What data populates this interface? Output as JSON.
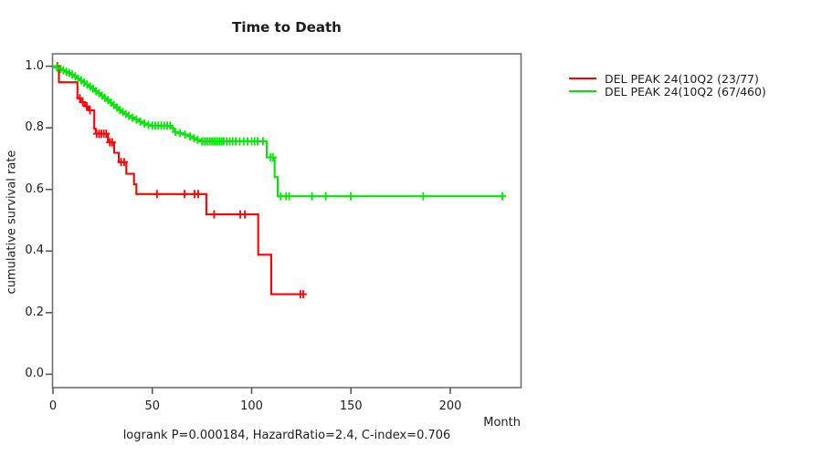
{
  "title": "Time to Death",
  "caption": "logrank P=0.000184, HazardRatio=2.4, C-index=0.706",
  "y_axis_title": "cumulative survival rate",
  "x_axis_unit": "Month",
  "colors": {
    "series_red": "#ff0000",
    "series_green": "#00e600",
    "frame": "#6f6f6f",
    "text": "#1c1c1c"
  },
  "legend": [
    {
      "label": "DEL PEAK 24(10Q2 (23/77)",
      "color": "#ff0000"
    },
    {
      "label": "DEL PEAK 24(10Q2 (67/460)",
      "color": "#00e600"
    }
  ],
  "chart_data": {
    "type": "line",
    "subtype": "kaplan-meier-step",
    "title": "Time to Death",
    "xlabel": "Month",
    "ylabel": "cumulative survival rate",
    "xlim": [
      0,
      235
    ],
    "ylim": [
      0,
      1.0
    ],
    "grid": false,
    "legend_position": "right-outside",
    "x_ticks": [
      {
        "v": 0,
        "label": "0"
      },
      {
        "v": 50,
        "label": "50"
      },
      {
        "v": 100,
        "label": "100"
      },
      {
        "v": 150,
        "label": "150"
      },
      {
        "v": 200,
        "label": "200"
      }
    ],
    "y_ticks": [
      {
        "v": 0.0,
        "label": "0.0"
      },
      {
        "v": 0.2,
        "label": "0.2"
      },
      {
        "v": 0.4,
        "label": "0.4"
      },
      {
        "v": 0.6,
        "label": "0.6"
      },
      {
        "v": 0.8,
        "label": "0.8"
      },
      {
        "v": 1.0,
        "label": "1.0"
      }
    ],
    "series": [
      {
        "name": "DEL PEAK 24(10Q2 (23/77)",
        "events_over_n": "23/77",
        "color": "#ff0000",
        "start": [
          0,
          1.0
        ],
        "steps": [
          [
            3,
            0.948
          ],
          [
            12.3,
            0.896
          ],
          [
            14,
            0.883
          ],
          [
            16,
            0.87
          ],
          [
            17.8,
            0.857
          ],
          [
            20.8,
            0.797
          ],
          [
            21.5,
            0.781
          ],
          [
            27.7,
            0.753
          ],
          [
            30.8,
            0.719
          ],
          [
            33.1,
            0.689
          ],
          [
            36.9,
            0.651
          ],
          [
            40.8,
            0.617
          ],
          [
            42,
            0.585
          ],
          [
            77.2,
            0.519
          ],
          [
            103.3,
            0.388
          ],
          [
            109.9,
            0.26
          ]
        ],
        "end_time": 126.4,
        "censor_marks": [
          [
            2.2,
            1.0
          ],
          [
            13.5,
            0.896
          ],
          [
            15,
            0.883
          ],
          [
            17,
            0.87
          ],
          [
            18.6,
            0.857
          ],
          [
            22,
            0.781
          ],
          [
            23.2,
            0.781
          ],
          [
            24.4,
            0.781
          ],
          [
            25.6,
            0.781
          ],
          [
            26.8,
            0.781
          ],
          [
            28.6,
            0.753
          ],
          [
            29.8,
            0.753
          ],
          [
            34.3,
            0.689
          ],
          [
            35.8,
            0.689
          ],
          [
            52.3,
            0.585
          ],
          [
            66.2,
            0.585
          ],
          [
            71.3,
            0.585
          ],
          [
            73.1,
            0.585
          ],
          [
            81.1,
            0.519
          ],
          [
            94.3,
            0.519
          ],
          [
            96.6,
            0.519
          ],
          [
            124.6,
            0.26
          ],
          [
            126,
            0.26
          ]
        ]
      },
      {
        "name": "DEL PEAK 24(10Q2 (67/460)",
        "events_over_n": "67/460",
        "color": "#00e600",
        "start": [
          0,
          1.0
        ],
        "steps": [
          [
            1.5,
            0.996
          ],
          [
            3,
            0.991
          ],
          [
            4.5,
            0.987
          ],
          [
            6,
            0.982
          ],
          [
            7.5,
            0.978
          ],
          [
            9,
            0.973
          ],
          [
            10.5,
            0.967
          ],
          [
            12,
            0.96
          ],
          [
            13.5,
            0.954
          ],
          [
            15,
            0.947
          ],
          [
            16.5,
            0.941
          ],
          [
            18,
            0.934
          ],
          [
            19.5,
            0.927
          ],
          [
            21,
            0.919
          ],
          [
            22.5,
            0.912
          ],
          [
            24,
            0.905
          ],
          [
            25.5,
            0.897
          ],
          [
            27,
            0.89
          ],
          [
            28.5,
            0.882
          ],
          [
            30,
            0.874
          ],
          [
            31.5,
            0.866
          ],
          [
            33,
            0.858
          ],
          [
            34.5,
            0.851
          ],
          [
            36,
            0.845
          ],
          [
            37.5,
            0.839
          ],
          [
            39,
            0.833
          ],
          [
            41,
            0.827
          ],
          [
            43,
            0.82
          ],
          [
            45,
            0.814
          ],
          [
            47,
            0.81
          ],
          [
            48.5,
            0.807
          ],
          [
            59.5,
            0.8
          ],
          [
            60.7,
            0.787
          ],
          [
            63,
            0.783
          ],
          [
            65.5,
            0.778
          ],
          [
            68,
            0.772
          ],
          [
            70.5,
            0.766
          ],
          [
            72,
            0.761
          ],
          [
            73.7,
            0.756
          ],
          [
            107.6,
            0.704
          ],
          [
            111.6,
            0.64
          ],
          [
            113.1,
            0.578
          ]
        ],
        "end_time": 227.6,
        "censor_marks": [
          [
            2,
            0.996
          ],
          [
            3.8,
            0.991
          ],
          [
            5.2,
            0.987
          ],
          [
            6.8,
            0.982
          ],
          [
            8.2,
            0.978
          ],
          [
            9.7,
            0.973
          ],
          [
            11.2,
            0.967
          ],
          [
            12.7,
            0.96
          ],
          [
            14.2,
            0.954
          ],
          [
            15.7,
            0.947
          ],
          [
            17.2,
            0.941
          ],
          [
            18.7,
            0.934
          ],
          [
            20.2,
            0.927
          ],
          [
            21.7,
            0.919
          ],
          [
            23.2,
            0.912
          ],
          [
            24.7,
            0.905
          ],
          [
            26.2,
            0.897
          ],
          [
            27.7,
            0.89
          ],
          [
            29.2,
            0.882
          ],
          [
            30.7,
            0.874
          ],
          [
            32.2,
            0.866
          ],
          [
            33.7,
            0.858
          ],
          [
            35.2,
            0.851
          ],
          [
            36.7,
            0.845
          ],
          [
            38.2,
            0.839
          ],
          [
            40,
            0.833
          ],
          [
            42,
            0.827
          ],
          [
            44,
            0.82
          ],
          [
            46,
            0.814
          ],
          [
            48,
            0.81
          ],
          [
            50,
            0.807
          ],
          [
            51.5,
            0.807
          ],
          [
            53,
            0.807
          ],
          [
            54.5,
            0.807
          ],
          [
            56,
            0.807
          ],
          [
            57.5,
            0.807
          ],
          [
            59,
            0.807
          ],
          [
            61.6,
            0.787
          ],
          [
            64,
            0.783
          ],
          [
            66.5,
            0.778
          ],
          [
            69,
            0.772
          ],
          [
            71,
            0.766
          ],
          [
            72.8,
            0.761
          ],
          [
            75,
            0.756
          ],
          [
            76,
            0.756
          ],
          [
            77,
            0.756
          ],
          [
            78,
            0.756
          ],
          [
            79,
            0.756
          ],
          [
            80,
            0.756
          ],
          [
            81,
            0.756
          ],
          [
            82,
            0.756
          ],
          [
            83,
            0.756
          ],
          [
            84,
            0.756
          ],
          [
            85,
            0.756
          ],
          [
            86,
            0.756
          ],
          [
            87.5,
            0.756
          ],
          [
            89,
            0.756
          ],
          [
            90.5,
            0.756
          ],
          [
            92,
            0.756
          ],
          [
            94,
            0.756
          ],
          [
            96,
            0.756
          ],
          [
            98,
            0.756
          ],
          [
            100,
            0.756
          ],
          [
            101.5,
            0.756
          ],
          [
            103,
            0.756
          ],
          [
            105.7,
            0.756
          ],
          [
            109.5,
            0.704
          ],
          [
            110.8,
            0.704
          ],
          [
            114.6,
            0.578
          ],
          [
            117.4,
            0.578
          ],
          [
            118.9,
            0.578
          ],
          [
            130.4,
            0.578
          ],
          [
            137.3,
            0.578
          ],
          [
            149.9,
            0.578
          ],
          [
            186.4,
            0.578
          ],
          [
            226.2,
            0.578
          ]
        ]
      }
    ]
  }
}
